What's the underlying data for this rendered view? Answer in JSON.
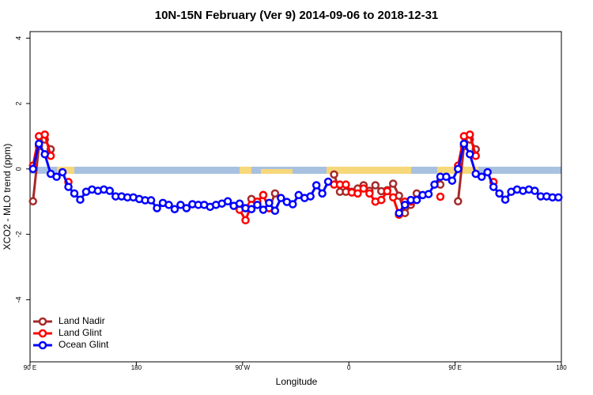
{
  "chart_data": {
    "type": "line",
    "title": "10N-15N February (Ver 9)   2014-09-06 to 2018-12-31",
    "x_label": "Longitude",
    "y_label": "XCO2 - MLO trend (ppm)",
    "x": [
      92.5,
      97.5,
      102.5,
      107.5,
      112.5,
      117.5,
      122.5,
      127.5,
      132.5,
      137.5,
      142.5,
      147.5,
      152.5,
      157.5,
      162.5,
      167.5,
      172.5,
      177.5,
      182.5,
      187.5,
      192.5,
      197.5,
      202.5,
      207.5,
      212.5,
      217.5,
      222.5,
      227.5,
      232.5,
      237.5,
      242.5,
      247.5,
      252.5,
      257.5,
      262.5,
      267.5,
      272.5,
      277.5,
      282.5,
      287.5,
      292.5,
      297.5,
      302.5,
      307.5,
      312.5,
      317.5,
      322.5,
      327.5,
      332.5,
      337.5,
      342.5,
      347.5,
      352.5,
      357.5,
      362.5,
      367.5,
      372.5,
      377.5,
      382.5,
      387.5,
      392.5,
      397.5,
      402.5,
      407.5,
      412.5,
      417.5,
      422.5,
      427.5,
      432.5,
      437.5,
      442.5,
      447.5,
      452.5,
      457.5,
      462.5,
      467.5,
      472.5,
      477.5,
      482.5,
      487.5,
      492.5,
      497.5,
      502.5,
      507.5,
      512.5,
      517.5,
      522.5,
      527.5,
      532.5,
      537.5
    ],
    "series": [
      {
        "name": "Land Nadir",
        "color": "#a52a2a",
        "values": [
          -0.99,
          0.7,
          0.9,
          0.6,
          null,
          null,
          null,
          null,
          null,
          null,
          null,
          null,
          null,
          null,
          null,
          null,
          null,
          null,
          null,
          null,
          null,
          null,
          null,
          null,
          null,
          null,
          null,
          null,
          null,
          null,
          null,
          null,
          null,
          null,
          null,
          null,
          null,
          -0.92,
          null,
          -0.8,
          -1.2,
          -0.75,
          null,
          null,
          null,
          null,
          null,
          null,
          null,
          null,
          null,
          -0.17,
          -0.7,
          -0.7,
          -0.7,
          -0.6,
          -0.5,
          -0.67,
          -0.5,
          -0.68,
          -0.65,
          -0.45,
          -0.82,
          -1.35,
          -1.1,
          -0.75,
          null,
          null,
          null,
          -0.48,
          null,
          null,
          -0.99,
          0.7,
          0.9,
          0.6,
          null,
          null,
          null,
          null,
          null,
          null,
          null,
          null,
          null,
          null,
          null,
          null,
          null,
          null
        ]
      },
      {
        "name": "Land Glint",
        "color": "#ff0000",
        "values": [
          0.1,
          1.0,
          1.05,
          0.4,
          null,
          null,
          -0.4,
          null,
          null,
          null,
          null,
          null,
          null,
          null,
          null,
          null,
          null,
          null,
          null,
          null,
          null,
          null,
          null,
          null,
          null,
          null,
          null,
          null,
          null,
          null,
          null,
          null,
          null,
          null,
          null,
          -1.25,
          -1.57,
          -1.1,
          -1.0,
          -0.8,
          -1.2,
          null,
          null,
          null,
          null,
          null,
          null,
          null,
          null,
          null,
          null,
          -0.48,
          -0.48,
          -0.48,
          -0.72,
          -0.75,
          -0.6,
          -0.75,
          -1.0,
          -0.95,
          -0.68,
          -0.87,
          -1.4,
          -1.0,
          -1.0,
          null,
          null,
          null,
          null,
          -0.85,
          null,
          null,
          0.1,
          1.0,
          1.05,
          0.4,
          null,
          null,
          -0.4,
          null,
          null,
          null,
          null,
          null,
          null,
          null,
          null,
          null,
          null,
          null
        ]
      },
      {
        "name": "Ocean Glint",
        "color": "#0000ff",
        "values": [
          0,
          0.77,
          0.45,
          -0.15,
          -0.24,
          -0.1,
          -0.55,
          -0.75,
          -0.94,
          -0.7,
          -0.63,
          -0.67,
          -0.63,
          -0.67,
          -0.84,
          -0.84,
          -0.87,
          -0.87,
          -0.92,
          -0.96,
          -0.96,
          -1.2,
          -1.04,
          -1.1,
          -1.23,
          -1.1,
          -1.2,
          -1.08,
          -1.1,
          -1.1,
          -1.16,
          -1.1,
          -1.06,
          -0.99,
          -1.13,
          -1.06,
          -1.2,
          -1.23,
          -1.1,
          -1.25,
          -1.04,
          -1.28,
          -0.89,
          -1.01,
          -1.08,
          -0.8,
          -0.89,
          -0.84,
          -0.5,
          -0.75,
          -0.39,
          null,
          null,
          null,
          null,
          null,
          null,
          null,
          null,
          null,
          null,
          null,
          -1.35,
          -1.1,
          -0.95,
          -0.95,
          -0.8,
          -0.77,
          -0.48,
          -0.24,
          -0.24,
          -0.36,
          0,
          0.77,
          0.45,
          -0.15,
          -0.24,
          -0.1,
          -0.55,
          -0.75,
          -0.94,
          -0.7,
          -0.63,
          -0.67,
          -0.63,
          -0.67,
          -0.84,
          -0.84,
          -0.87,
          -0.87
        ]
      }
    ],
    "xlim": [
      90,
      540
    ],
    "xticks": [
      {
        "value": 90,
        "label": "90 E"
      },
      {
        "value": 180,
        "label": "180"
      },
      {
        "value": 270,
        "label": "90 W"
      },
      {
        "value": 360,
        "label": "0"
      },
      {
        "value": 450,
        "label": "90 E"
      },
      {
        "value": 540,
        "label": "180"
      }
    ],
    "ylim": [
      -5.9,
      4.2
    ],
    "yticks": [
      -4,
      -2,
      0,
      2,
      4
    ],
    "legend": "bottom-left"
  }
}
